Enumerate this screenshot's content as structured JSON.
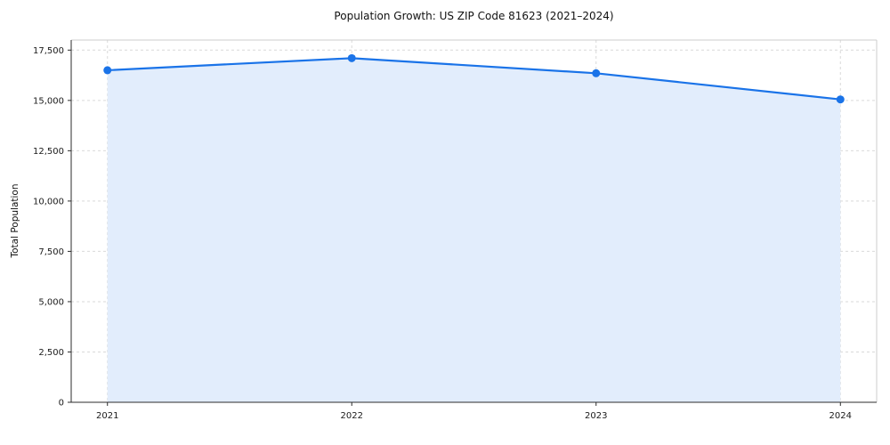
{
  "chart_data": {
    "type": "area",
    "title": "Population Growth: US ZIP Code 81623 (2021–2024)",
    "xlabel": "",
    "ylabel": "Total Population",
    "categories": [
      "2021",
      "2022",
      "2023",
      "2024"
    ],
    "series": [
      {
        "name": "Total Population",
        "values": [
          16500,
          17100,
          16350,
          15050
        ]
      }
    ],
    "ylim": [
      0,
      18000
    ],
    "yticks": [
      0,
      2500,
      5000,
      7500,
      10000,
      12500,
      15000,
      17500
    ],
    "ytick_labels": [
      "0",
      "2,500",
      "5,000",
      "7,500",
      "10,000",
      "12,500",
      "15,000",
      "17,500"
    ],
    "grid": true,
    "grid_style": "dashed",
    "legend": "none",
    "colors": {
      "line": "#1a73e8",
      "marker": "#1a73e8",
      "fill": "#e2edfc",
      "grid": "#d9d9d9",
      "spine_dark": "#2b2b2b",
      "spine_light": "#cccccc",
      "tick_text": "#1a1a1a"
    }
  }
}
